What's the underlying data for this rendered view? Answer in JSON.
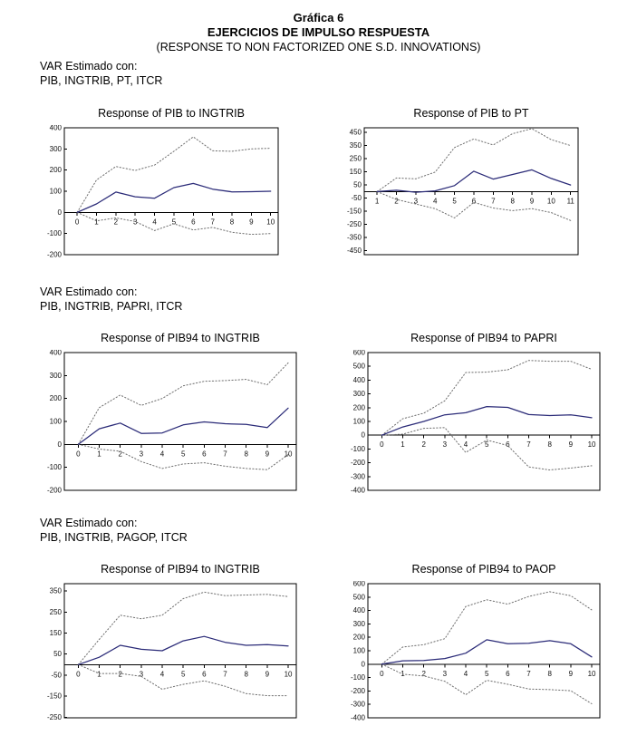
{
  "page": {
    "title_line1": "Gráfica 6",
    "title_line2": "EJERCICIOS DE IMPULSO RESPUESTA",
    "title_line3": "(RESPONSE TO NON FACTORIZED ONE S.D. INNOVATIONS)"
  },
  "colors": {
    "solid_line": "#2b2b78",
    "band_line": "#6e6e6e",
    "axis": "#000000",
    "tick_text": "#111111"
  },
  "sections": [
    {
      "var_label": "VAR Estimado con:",
      "var_vars": "PIB, INGTRIB, PT, ITCR",
      "chart_indexes": [
        0,
        1
      ]
    },
    {
      "var_label": "VAR Estimado con:",
      "var_vars": "PIB, INGTRIB, PAPRI, ITCR",
      "chart_indexes": [
        2,
        3
      ]
    },
    {
      "var_label": "VAR Estimado con:",
      "var_vars": "PIB, INGTRIB, PAGOP, ITCR",
      "chart_indexes": [
        4,
        5
      ]
    }
  ],
  "chart_data": [
    {
      "type": "line",
      "title": "Response of PIB to INGTRIB",
      "x": [
        0,
        1,
        2,
        3,
        4,
        5,
        6,
        7,
        8,
        9,
        10
      ],
      "ylim": [
        -200,
        400
      ],
      "yticks": [
        400,
        300,
        200,
        100,
        0,
        -100,
        -200
      ],
      "grid": false,
      "legend": "none",
      "series": [
        {
          "name": "response",
          "style": "solid",
          "values": [
            0,
            40,
            96,
            74,
            67,
            117,
            137,
            110,
            97,
            98,
            100
          ]
        },
        {
          "name": "upper_band",
          "style": "dotted",
          "values": [
            0,
            153,
            217,
            198,
            224,
            289,
            357,
            291,
            289,
            300,
            303
          ]
        },
        {
          "name": "lower_band",
          "style": "dotted",
          "values": [
            0,
            -40,
            -26,
            -43,
            -86,
            -54,
            -83,
            -71,
            -94,
            -104,
            -100
          ]
        }
      ]
    },
    {
      "type": "line",
      "title": "Response of PIB to PT",
      "x": [
        1,
        2,
        3,
        4,
        5,
        6,
        7,
        8,
        9,
        10,
        11
      ],
      "ylim": [
        -480,
        485
      ],
      "yticks": [
        450,
        350,
        250,
        150,
        50,
        -50,
        -150,
        -250,
        -350,
        -450
      ],
      "grid": false,
      "legend": "none",
      "series": [
        {
          "name": "response",
          "style": "solid",
          "values": [
            0,
            10,
            -5,
            5,
            45,
            155,
            95,
            130,
            165,
            100,
            50
          ]
        },
        {
          "name": "upper_band",
          "style": "dotted",
          "values": [
            0,
            103,
            97,
            148,
            335,
            400,
            355,
            440,
            478,
            395,
            350
          ]
        },
        {
          "name": "lower_band",
          "style": "dotted",
          "values": [
            0,
            -60,
            -95,
            -130,
            -200,
            -82,
            -125,
            -145,
            -130,
            -160,
            -220
          ]
        }
      ]
    },
    {
      "type": "line",
      "title": "Response of PIB94 to INGTRIB",
      "x": [
        0,
        1,
        2,
        3,
        4,
        5,
        6,
        7,
        8,
        9,
        10
      ],
      "ylim": [
        -200,
        400
      ],
      "yticks": [
        400,
        300,
        200,
        100,
        0,
        -100,
        -200
      ],
      "grid": false,
      "legend": "none",
      "series": [
        {
          "name": "response",
          "style": "solid",
          "values": [
            0,
            68,
            93,
            48,
            50,
            85,
            98,
            90,
            87,
            73,
            158
          ]
        },
        {
          "name": "upper_band",
          "style": "dotted",
          "values": [
            0,
            160,
            215,
            170,
            200,
            255,
            275,
            278,
            283,
            260,
            355
          ]
        },
        {
          "name": "lower_band",
          "style": "dotted",
          "values": [
            0,
            -20,
            -30,
            -75,
            -105,
            -85,
            -80,
            -95,
            -105,
            -110,
            -45
          ]
        }
      ]
    },
    {
      "type": "line",
      "title": "Response of PIB94 to PAPRI",
      "x": [
        0,
        1,
        2,
        3,
        4,
        5,
        6,
        7,
        8,
        9,
        10
      ],
      "ylim": [
        -400,
        600
      ],
      "yticks": [
        600,
        500,
        400,
        300,
        200,
        100,
        0,
        -100,
        -200,
        -300,
        -400
      ],
      "grid": false,
      "legend": "none",
      "series": [
        {
          "name": "response",
          "style": "solid",
          "values": [
            0,
            60,
            100,
            148,
            163,
            208,
            202,
            150,
            143,
            148,
            127
          ]
        },
        {
          "name": "upper_band",
          "style": "dotted",
          "values": [
            0,
            120,
            160,
            250,
            455,
            458,
            475,
            543,
            537,
            537,
            478
          ]
        },
        {
          "name": "lower_band",
          "style": "dotted",
          "values": [
            0,
            8,
            50,
            55,
            -125,
            -35,
            -75,
            -230,
            -252,
            -238,
            -222
          ]
        }
      ]
    },
    {
      "type": "line",
      "title": "Response of PIB94 to INGTRIB",
      "x": [
        0,
        1,
        2,
        3,
        4,
        5,
        6,
        7,
        8,
        9,
        10
      ],
      "ylim": [
        -253,
        385
      ],
      "yticks": [
        350,
        250,
        150,
        50,
        -50,
        -150,
        -250
      ],
      "grid": false,
      "legend": "none",
      "series": [
        {
          "name": "response",
          "style": "solid",
          "values": [
            0,
            35,
            92,
            73,
            66,
            113,
            134,
            106,
            92,
            95,
            89
          ]
        },
        {
          "name": "upper_band",
          "style": "dotted",
          "values": [
            0,
            120,
            235,
            218,
            235,
            314,
            345,
            328,
            331,
            334,
            324
          ]
        },
        {
          "name": "lower_band",
          "style": "dotted",
          "values": [
            0,
            -42,
            -42,
            -56,
            -117,
            -94,
            -77,
            -103,
            -138,
            -148,
            -148
          ]
        }
      ]
    },
    {
      "type": "line",
      "title": "Response of PIB94 to PAOP",
      "x": [
        0,
        1,
        2,
        3,
        4,
        5,
        6,
        7,
        8,
        9,
        10
      ],
      "ylim": [
        -400,
        600
      ],
      "yticks": [
        600,
        500,
        400,
        300,
        200,
        100,
        0,
        -100,
        -200,
        -300,
        -400
      ],
      "grid": false,
      "legend": "none",
      "series": [
        {
          "name": "response",
          "style": "solid",
          "values": [
            0,
            25,
            28,
            42,
            82,
            182,
            152,
            156,
            175,
            152,
            54
          ]
        },
        {
          "name": "upper_band",
          "style": "dotted",
          "values": [
            0,
            128,
            145,
            190,
            430,
            480,
            447,
            505,
            540,
            510,
            405
          ]
        },
        {
          "name": "lower_band",
          "style": "dotted",
          "values": [
            0,
            -75,
            -88,
            -128,
            -228,
            -120,
            -150,
            -185,
            -190,
            -198,
            -295
          ]
        }
      ]
    }
  ]
}
